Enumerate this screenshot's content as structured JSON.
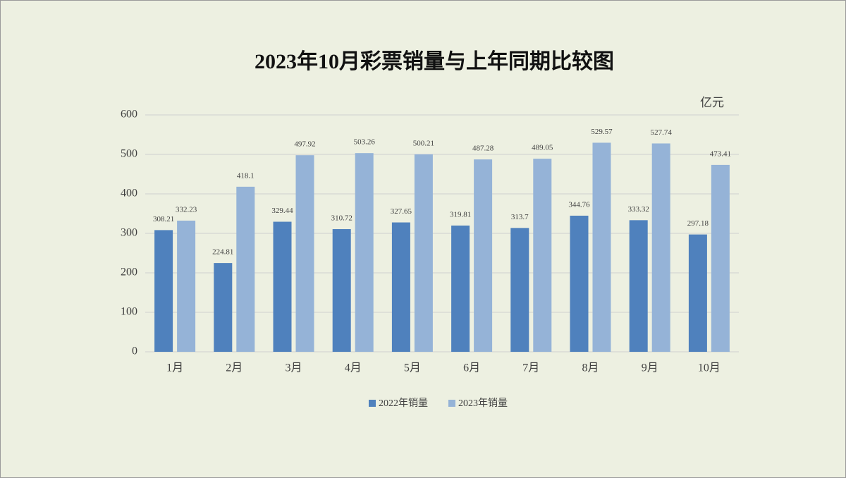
{
  "chart_data": {
    "type": "bar",
    "title": "2023年10月彩票销量与上年同期比较图",
    "unit": "亿元",
    "categories": [
      "1月",
      "2月",
      "3月",
      "4月",
      "5月",
      "6月",
      "7月",
      "8月",
      "9月",
      "10月"
    ],
    "series": [
      {
        "name": "2022年销量",
        "color": "#4f81bd",
        "values": [
          308.21,
          224.81,
          329.44,
          310.72,
          327.65,
          319.81,
          313.7,
          344.76,
          333.32,
          297.18
        ]
      },
      {
        "name": "2023年销量",
        "color": "#95b3d7",
        "values": [
          332.23,
          418.1,
          497.92,
          503.26,
          500.21,
          487.28,
          489.05,
          529.57,
          527.74,
          473.41
        ]
      }
    ],
    "ylim": [
      0,
      600
    ],
    "yticks": [
      0,
      100,
      200,
      300,
      400,
      500,
      600
    ],
    "grid": true,
    "legend": "bottom"
  }
}
